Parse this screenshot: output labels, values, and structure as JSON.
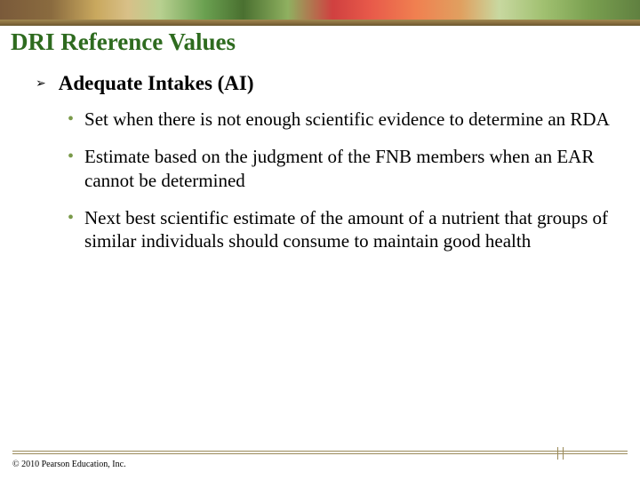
{
  "colors": {
    "title_color": "#2e6b1f",
    "bullet_level2_color": "#7a9a4a",
    "footer_line_color": "#9a8a5a",
    "background": "#ffffff",
    "text_color": "#000000"
  },
  "typography": {
    "family": "Times New Roman",
    "title_fontsize": 27,
    "level1_fontsize": 23,
    "level2_fontsize": 21,
    "copyright_fontsize": 10
  },
  "title": "DRI Reference Values",
  "level1": {
    "bullet_glyph": "➢",
    "text": "Adequate Intakes (AI)"
  },
  "level2": {
    "bullet_glyph": "•",
    "items": [
      "Set when there is not enough scientific evidence to determine an RDA",
      "Estimate based on the judgment of the FNB members when an EAR cannot be determined",
      "Next best scientific estimate of the amount of a nutrient that groups of similar individuals should consume to maintain good health"
    ]
  },
  "copyright": "© 2010 Pearson Education, Inc."
}
